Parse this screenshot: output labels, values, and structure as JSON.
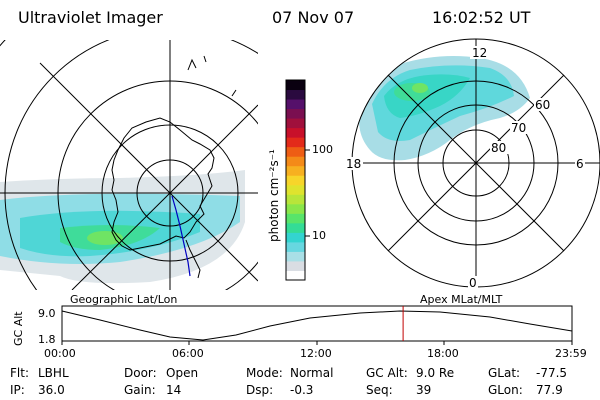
{
  "header": {
    "instrument": "Ultraviolet Imager",
    "date": "07 Nov 07",
    "time": "16:02:52 UT"
  },
  "colorbar": {
    "unit": "photon cm⁻²s⁻¹",
    "ticks": [
      "100",
      "10"
    ],
    "scale": "log",
    "colors": [
      "#ffffff",
      "#d9dde3",
      "#a9dfe6",
      "#67d7e0",
      "#33d4d0",
      "#34dc96",
      "#58e46a",
      "#8ae64a",
      "#b8e53a",
      "#dfe32e",
      "#f7d52a",
      "#f7b020",
      "#f48a18",
      "#ee5d14",
      "#e32a1a",
      "#c8102a",
      "#a0103c",
      "#7a0f50",
      "#55106a",
      "#2a0a3f",
      "#0a0010"
    ]
  },
  "left_map": {
    "label": "Geographic Lat/Lon"
  },
  "right_map": {
    "label": "Apex  MLat/MLT",
    "mlt_labels": {
      "top": "12",
      "left": "18",
      "right": "6",
      "bottom": "0"
    },
    "mlat_labels": [
      "60",
      "70",
      "80"
    ]
  },
  "altitude_plot": {
    "ylabel": "GC Alt",
    "yticks": [
      "9.0",
      "1.8"
    ],
    "xticks": [
      "00:00",
      "06:00",
      "12:00",
      "18:00",
      "23:59"
    ],
    "current_time_marker_hours": 16.05,
    "marker_color": "#c00000"
  },
  "info": {
    "row1": [
      {
        "label": "Flt:",
        "value": "LBHL"
      },
      {
        "label": "Door:",
        "value": "Open"
      },
      {
        "label": "Mode:",
        "value": "Normal"
      },
      {
        "label": "GC Alt:",
        "value": "9.0 Re"
      },
      {
        "label": "GLat:",
        "value": "-77.5"
      }
    ],
    "row2": [
      {
        "label": "IP:",
        "value": "36.0"
      },
      {
        "label": "Gain:",
        "value": "14"
      },
      {
        "label": "Dsp:",
        "value": "-0.3"
      },
      {
        "label": "Seq:",
        "value": "39"
      },
      {
        "label": "GLon:",
        "value": "77.9"
      }
    ]
  }
}
